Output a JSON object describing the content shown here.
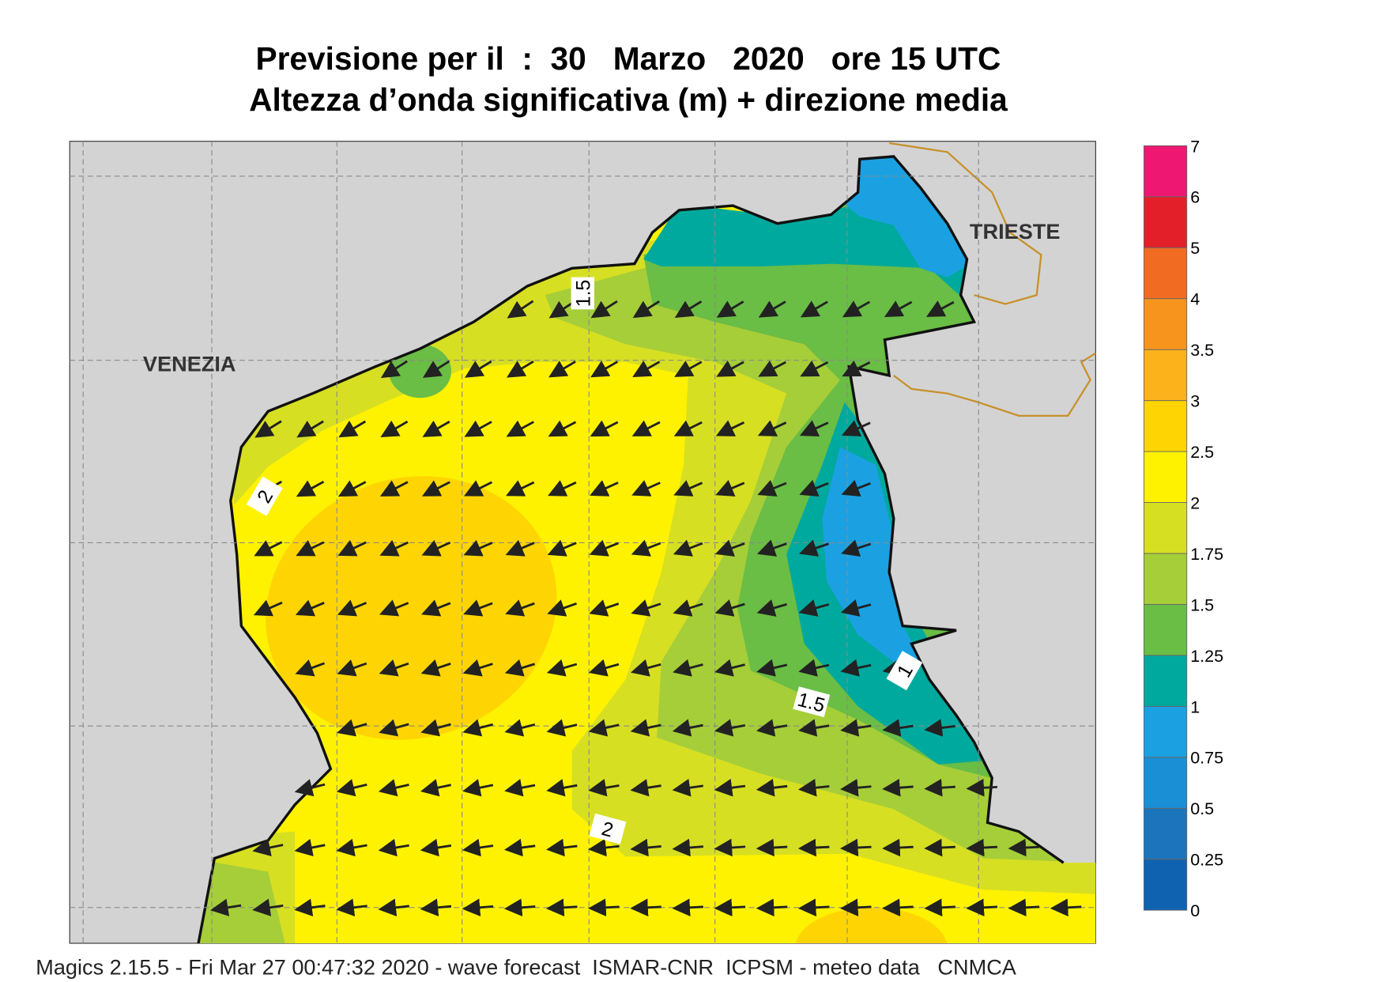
{
  "header": {
    "title": "Previsione per il  :  30   Marzo   2020   ore 15 UTC",
    "subtitle": "Altezza d’onda significativa (m) + direzione media"
  },
  "map": {
    "places": [
      "VENEZIA",
      "TRIESTE"
    ],
    "contour_labels": [
      "1.5",
      "2",
      "1",
      "1.5",
      "2"
    ]
  },
  "legend": {
    "levels": [
      0,
      0.25,
      0.5,
      0.75,
      1,
      1.25,
      1.5,
      1.75,
      2,
      2.5,
      3,
      3.5,
      4,
      5,
      6,
      7
    ],
    "colors": [
      "#0f62b0",
      "#1c75bc",
      "#1a8fd6",
      "#1ba1e2",
      "#00a99d",
      "#6abd45",
      "#a6ce39",
      "#d7df23",
      "#fff200",
      "#fed503",
      "#fbb21b",
      "#f7941d",
      "#f26b22",
      "#e3202a",
      "#ee1771"
    ]
  },
  "footer": "Magics 2.15.5 - Fri Mar 27 00:47:32 2020 - wave forecast  ISMAR-CNR  ICPSM - meteo data   CNMCA"
}
